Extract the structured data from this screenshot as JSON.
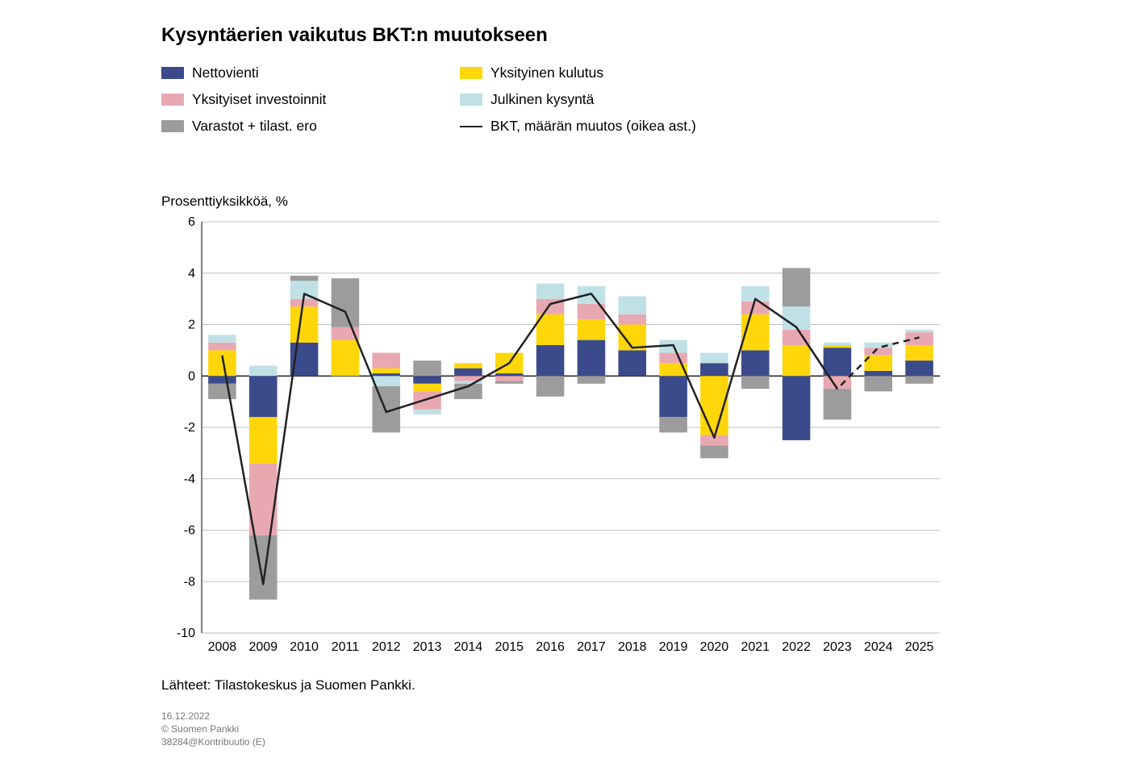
{
  "title": "Kysyntäerien vaikutus BKT:n muutokseen",
  "ylabel": "Prosenttiyksikköä, %",
  "legend": [
    {
      "label": "Nettovienti",
      "color": "#3b4a8a",
      "type": "swatch"
    },
    {
      "label": "Yksityinen kulutus",
      "color": "#ffd60a",
      "type": "swatch"
    },
    {
      "label": "Yksityiset investoinnit",
      "color": "#e8a8b2",
      "type": "swatch"
    },
    {
      "label": "Julkinen kysyntä",
      "color": "#bfe1e6",
      "type": "swatch"
    },
    {
      "label": "Varastot + tilast. ero",
      "color": "#9c9c9c",
      "type": "swatch"
    },
    {
      "label": "BKT, määrän muutos (oikea ast.)",
      "color": "#222222",
      "type": "line"
    }
  ],
  "chart": {
    "type": "stacked-bar-with-line",
    "ylim": [
      -10,
      6
    ],
    "ytick_step": 2,
    "bar_width": 0.68,
    "grid_color": "#bfbfbf",
    "background_color": "#ffffff",
    "forecast_start_index": 15,
    "categories": [
      "2008",
      "2009",
      "2010",
      "2011",
      "2012",
      "2013",
      "2014",
      "2015",
      "2016",
      "2017",
      "2018",
      "2019",
      "2020",
      "2021",
      "2022",
      "2023",
      "2024",
      "2025"
    ],
    "series": [
      {
        "name": "Nettovienti",
        "key": "net_exports",
        "color": "#3b4a8a",
        "values": [
          -0.3,
          -1.6,
          1.3,
          0.0,
          0.1,
          -0.3,
          0.3,
          0.1,
          1.2,
          1.4,
          1.0,
          -1.6,
          0.5,
          1.0,
          -2.5,
          1.1,
          0.2,
          0.6
        ]
      },
      {
        "name": "Yksityinen kulutus",
        "key": "priv_cons",
        "color": "#ffd60a",
        "values": [
          1.0,
          -1.8,
          1.4,
          1.4,
          0.2,
          -0.3,
          0.2,
          0.8,
          1.2,
          0.8,
          1.0,
          0.5,
          -2.3,
          1.4,
          1.2,
          0.1,
          0.6,
          0.6
        ]
      },
      {
        "name": "Yksityiset investoinnit",
        "key": "priv_inv",
        "color": "#e8a8b2",
        "values": [
          0.3,
          -2.8,
          0.3,
          0.5,
          0.6,
          -0.7,
          -0.2,
          -0.2,
          0.6,
          0.6,
          0.4,
          0.4,
          -0.4,
          0.5,
          0.6,
          -0.5,
          0.3,
          0.5
        ]
      },
      {
        "name": "Julkinen kysyntä",
        "key": "pub_demand",
        "color": "#bfe1e6",
        "values": [
          0.3,
          0.4,
          0.7,
          0.0,
          -0.4,
          -0.2,
          -0.1,
          0.0,
          0.6,
          0.7,
          0.7,
          0.5,
          0.4,
          0.6,
          0.9,
          0.1,
          0.2,
          0.1
        ]
      },
      {
        "name": "Varastot + tilast. ero",
        "key": "inventories",
        "color": "#9c9c9c",
        "values": [
          -0.6,
          -2.5,
          0.2,
          1.9,
          -1.8,
          0.6,
          -0.6,
          -0.1,
          -0.8,
          -0.3,
          0.0,
          -0.6,
          -0.5,
          -0.5,
          1.5,
          -1.2,
          -0.6,
          -0.3
        ]
      }
    ],
    "gdp_line": {
      "color": "#222222",
      "values": [
        0.8,
        -8.1,
        3.2,
        2.5,
        -1.4,
        -0.9,
        -0.4,
        0.5,
        2.8,
        3.2,
        1.1,
        1.2,
        -2.4,
        3.0,
        1.9,
        -0.5,
        1.1,
        1.5
      ]
    }
  },
  "sources": "Lähteet: Tilastokeskus ja Suomen Pankki.",
  "meta": {
    "date": "16.12.2022",
    "org": "© Suomen Pankki",
    "code": "38284@Kontribuutio (E)"
  },
  "style": {
    "title_fontsize": 24,
    "legend_fontsize": 17.5,
    "axis_fontsize": 16
  }
}
